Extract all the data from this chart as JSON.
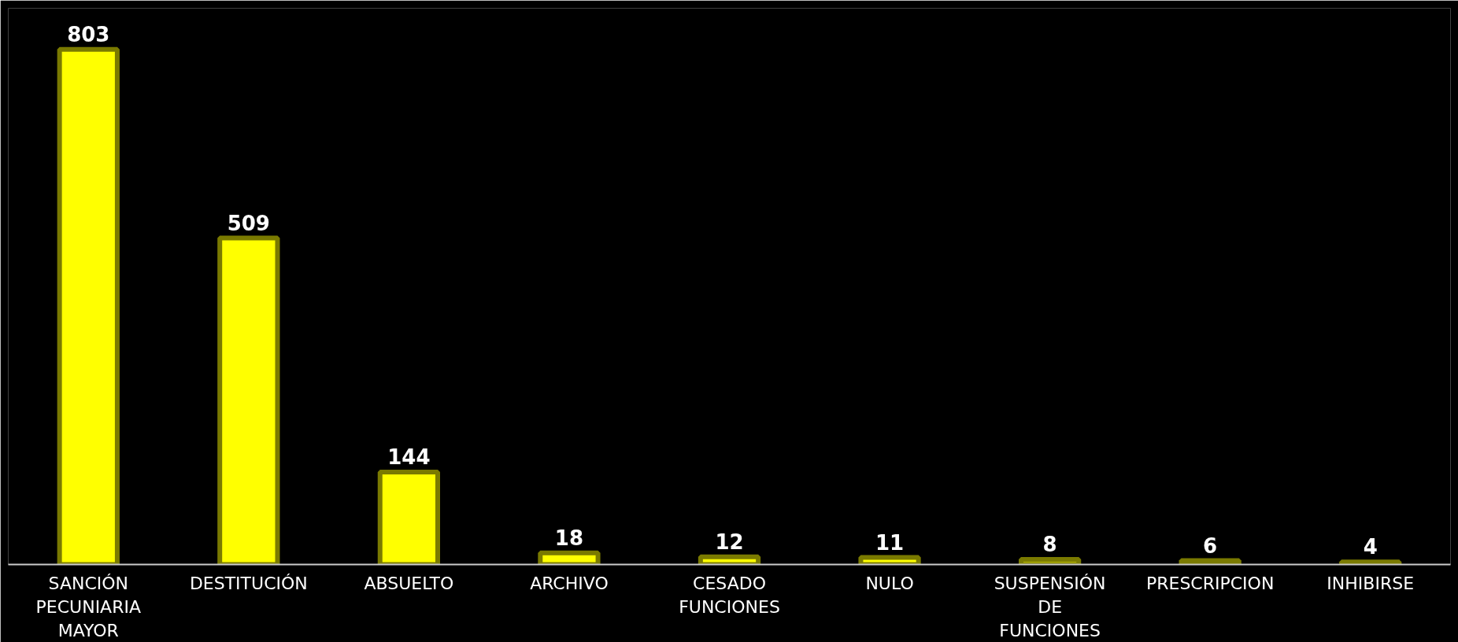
{
  "chart_data": {
    "type": "bar",
    "categories": [
      "SANCIÓN PECUNIARIA MAYOR",
      "DESTITUCIÓN",
      "ABSUELTO",
      "ARCHIVO",
      "CESADO FUNCIONES",
      "NULO",
      "SUSPENSIÓN DE FUNCIONES",
      "PRESCRIPCION",
      "INHIBIRSE"
    ],
    "values": [
      803,
      509,
      144,
      18,
      12,
      11,
      8,
      6,
      4
    ],
    "color": "#ffff00",
    "data_labels": true
  }
}
